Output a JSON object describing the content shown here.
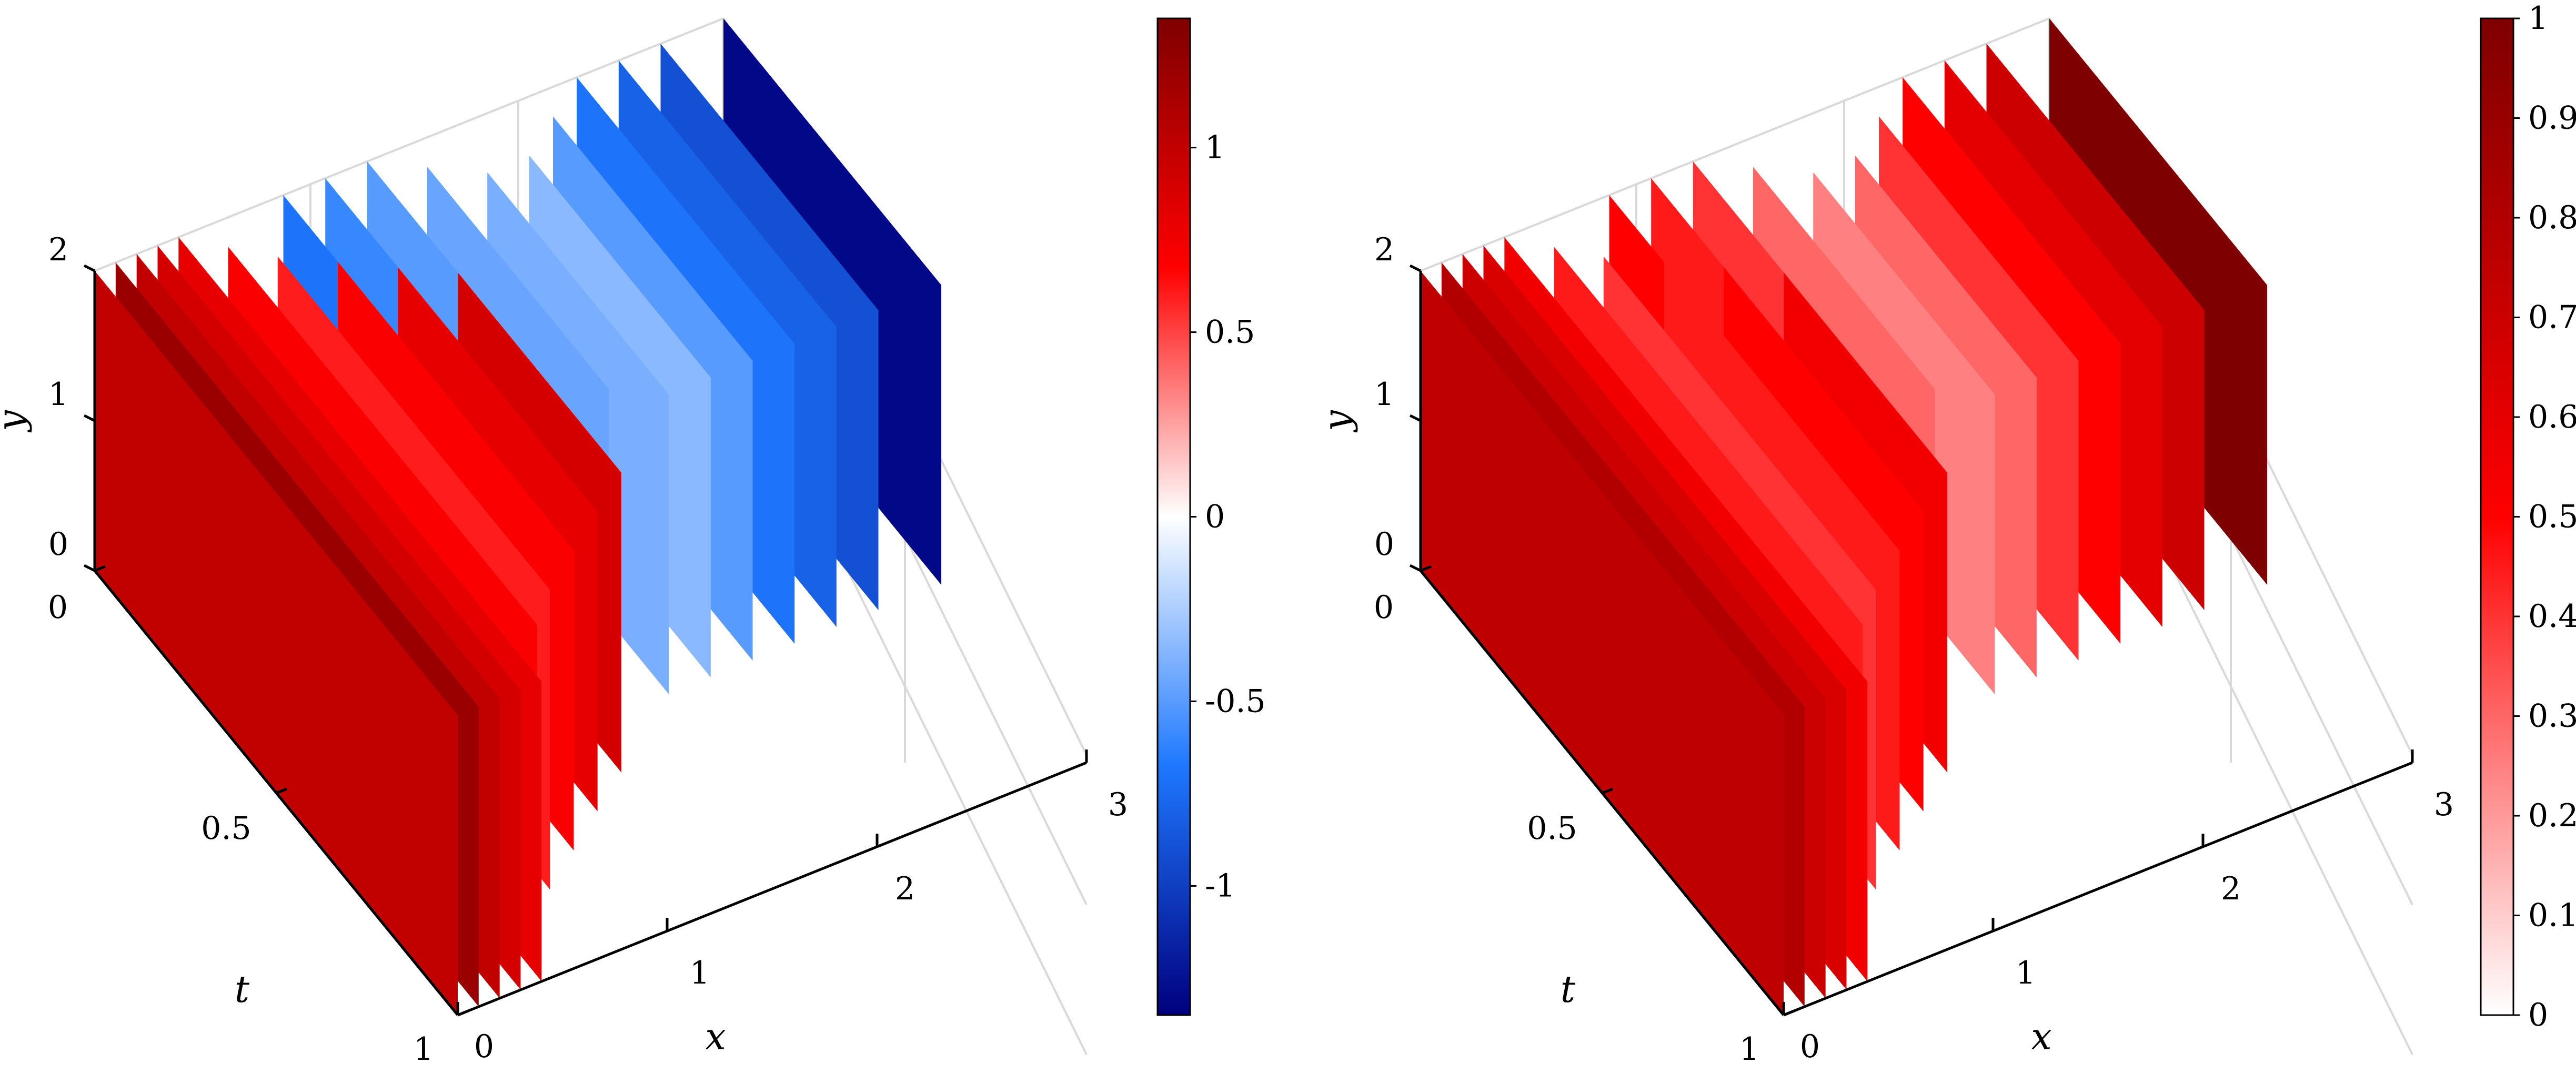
{
  "chart_data": [
    {
      "type": "surface",
      "projection": "3d-slices",
      "xlabel": "x",
      "ylabel": "y",
      "tlabel": "t",
      "xlim": [
        0,
        3
      ],
      "ylim": [
        0,
        2
      ],
      "tlim": [
        0,
        1
      ],
      "x_ticks": [
        "0",
        "1",
        "2",
        "3"
      ],
      "y_ticks": [
        "0",
        "1",
        "2"
      ],
      "t_ticks": [
        "0",
        "0.5",
        "1"
      ],
      "colormap": "blue-white-red",
      "clim": [
        -1.35,
        1.35
      ],
      "colorbar_ticks": [
        "-1",
        "-0.5",
        "0",
        "0.5",
        "1"
      ],
      "grid": true,
      "slices": [
        {
          "x": 0.0,
          "t_range": [
            0.0,
            1.0
          ],
          "value": 1.0
        },
        {
          "x": 0.1,
          "t_range": [
            0.0,
            1.0
          ],
          "value": 1.2
        },
        {
          "x": 0.2,
          "t_range": [
            0.0,
            1.0
          ],
          "value": 1.0
        },
        {
          "x": 0.3,
          "t_range": [
            0.0,
            1.0
          ],
          "value": 0.9
        },
        {
          "x": 0.4,
          "t_range": [
            0.0,
            1.0
          ],
          "value": 0.8
        },
        {
          "x": 0.55,
          "t_range": [
            0.05,
            0.9
          ],
          "value": 0.7
        },
        {
          "x": 0.7,
          "t_range": [
            0.1,
            0.85
          ],
          "value": 0.6
        },
        {
          "x": 0.9,
          "t_range": [
            0.15,
            0.8
          ],
          "value": 0.7
        },
        {
          "x": 1.1,
          "t_range": [
            0.2,
            0.75
          ],
          "value": 0.8
        },
        {
          "x": 1.3,
          "t_range": [
            0.25,
            0.7
          ],
          "value": 0.9
        },
        {
          "x": 0.9,
          "t_range": [
            0.0,
            0.3
          ],
          "value": -0.7
        },
        {
          "x": 1.1,
          "t_range": [
            0.0,
            0.35
          ],
          "value": -0.6
        },
        {
          "x": 1.3,
          "t_range": [
            0.0,
            0.45
          ],
          "value": -0.5
        },
        {
          "x": 1.5,
          "t_range": [
            0.05,
            0.55
          ],
          "value": -0.45
        },
        {
          "x": 1.7,
          "t_range": [
            0.1,
            0.6
          ],
          "value": -0.4
        },
        {
          "x": 1.9,
          "t_range": [
            0.1,
            0.6
          ],
          "value": -0.35
        },
        {
          "x": 2.1,
          "t_range": [
            0.05,
            0.6
          ],
          "value": -0.5
        },
        {
          "x": 2.3,
          "t_range": [
            0.0,
            0.6
          ],
          "value": -0.7
        },
        {
          "x": 2.5,
          "t_range": [
            0.0,
            0.6
          ],
          "value": -0.8
        },
        {
          "x": 2.7,
          "t_range": [
            0.0,
            0.6
          ],
          "value": -0.9
        },
        {
          "x": 3.0,
          "t_range": [
            0.0,
            0.6
          ],
          "value": -1.3
        }
      ]
    },
    {
      "type": "surface",
      "projection": "3d-slices",
      "xlabel": "x",
      "ylabel": "y",
      "tlabel": "t",
      "xlim": [
        0,
        3
      ],
      "ylim": [
        0,
        2
      ],
      "tlim": [
        0,
        1
      ],
      "x_ticks": [
        "0",
        "1",
        "2",
        "3"
      ],
      "y_ticks": [
        "0",
        "1",
        "2"
      ],
      "t_ticks": [
        "0",
        "0.5",
        "1"
      ],
      "colormap": "white-red",
      "clim": [
        0,
        1
      ],
      "colorbar_ticks": [
        "0",
        "0.1",
        "0.2",
        "0.3",
        "0.4",
        "0.5",
        "0.6",
        "0.7",
        "0.8",
        "0.9",
        "1"
      ],
      "grid": true,
      "slices": [
        {
          "x": 0.0,
          "t_range": [
            0.0,
            1.0
          ],
          "value": 0.75
        },
        {
          "x": 0.1,
          "t_range": [
            0.0,
            1.0
          ],
          "value": 0.8
        },
        {
          "x": 0.2,
          "t_range": [
            0.0,
            1.0
          ],
          "value": 0.7
        },
        {
          "x": 0.3,
          "t_range": [
            0.0,
            1.0
          ],
          "value": 0.65
        },
        {
          "x": 0.4,
          "t_range": [
            0.0,
            1.0
          ],
          "value": 0.55
        },
        {
          "x": 0.55,
          "t_range": [
            0.05,
            0.9
          ],
          "value": 0.45
        },
        {
          "x": 0.7,
          "t_range": [
            0.1,
            0.85
          ],
          "value": 0.4
        },
        {
          "x": 0.9,
          "t_range": [
            0.15,
            0.8
          ],
          "value": 0.45
        },
        {
          "x": 1.1,
          "t_range": [
            0.2,
            0.75
          ],
          "value": 0.5
        },
        {
          "x": 1.3,
          "t_range": [
            0.25,
            0.7
          ],
          "value": 0.55
        },
        {
          "x": 0.9,
          "t_range": [
            0.0,
            0.3
          ],
          "value": 0.5
        },
        {
          "x": 1.1,
          "t_range": [
            0.0,
            0.35
          ],
          "value": 0.45
        },
        {
          "x": 1.3,
          "t_range": [
            0.0,
            0.45
          ],
          "value": 0.4
        },
        {
          "x": 1.5,
          "t_range": [
            0.05,
            0.55
          ],
          "value": 0.3
        },
        {
          "x": 1.7,
          "t_range": [
            0.1,
            0.6
          ],
          "value": 0.25
        },
        {
          "x": 1.9,
          "t_range": [
            0.1,
            0.6
          ],
          "value": 0.3
        },
        {
          "x": 2.1,
          "t_range": [
            0.05,
            0.6
          ],
          "value": 0.4
        },
        {
          "x": 2.3,
          "t_range": [
            0.0,
            0.6
          ],
          "value": 0.5
        },
        {
          "x": 2.5,
          "t_range": [
            0.0,
            0.6
          ],
          "value": 0.6
        },
        {
          "x": 2.7,
          "t_range": [
            0.0,
            0.6
          ],
          "value": 0.7
        },
        {
          "x": 3.0,
          "t_range": [
            0.0,
            0.6
          ],
          "value": 1.0
        }
      ]
    }
  ],
  "colors": {
    "grid": "#d9d9d9",
    "axis": "#000000",
    "deep_red": "#7f0000",
    "red": "#ff0000",
    "white": "#ffffff",
    "blue": "#1e78ff",
    "deep_blue": "#00007f"
  }
}
